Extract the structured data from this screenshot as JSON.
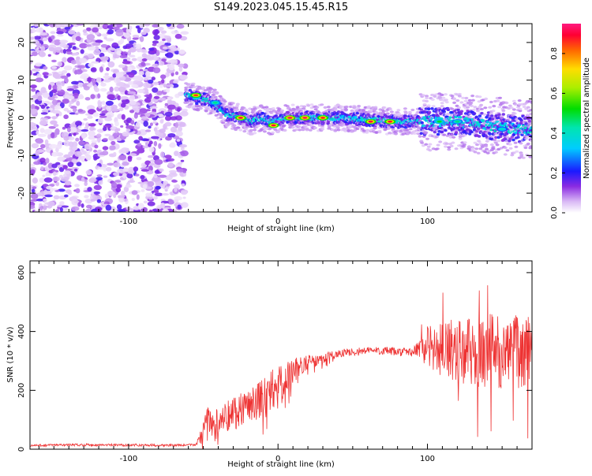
{
  "title": "S149.2023.045.15.45.R15",
  "chart_data": [
    {
      "type": "heatmap",
      "xlabel": "Height of straight line (km)",
      "ylabel": "Frequency (Hz)",
      "xlim": [
        -166,
        170
      ],
      "ylim": [
        -25,
        25
      ],
      "x_ticks": [
        -100,
        0,
        100
      ],
      "y_ticks": [
        -20,
        -10,
        0,
        10,
        20
      ],
      "colorbar": {
        "label": "Normalized spectral amplitude",
        "range": [
          0,
          0.95
        ],
        "ticks": [
          0.0,
          0.2,
          0.4,
          0.6,
          0.8
        ]
      },
      "noise_region_x": [
        -166,
        -62
      ],
      "ridge_path": [
        {
          "x": -62,
          "y": 6
        },
        {
          "x": -50,
          "y": 5
        },
        {
          "x": -42,
          "y": 4
        },
        {
          "x": -35,
          "y": 1
        },
        {
          "x": -25,
          "y": 0
        },
        {
          "x": -18,
          "y": -1
        },
        {
          "x": -12,
          "y": 0
        },
        {
          "x": -5,
          "y": -1
        },
        {
          "x": 5,
          "y": 0
        },
        {
          "x": 40,
          "y": 0
        },
        {
          "x": 80,
          "y": -1
        },
        {
          "x": 100,
          "y": -1
        },
        {
          "x": 120,
          "y": -1
        },
        {
          "x": 140,
          "y": -2
        },
        {
          "x": 160,
          "y": -3
        },
        {
          "x": 170,
          "y": -3
        }
      ],
      "hot_spots": [
        {
          "x": -55,
          "y": 6,
          "amp": 0.85
        },
        {
          "x": -42,
          "y": 4,
          "amp": 0.45
        },
        {
          "x": -25,
          "y": 0,
          "amp": 0.9
        },
        {
          "x": -3,
          "y": -2,
          "amp": 0.9
        },
        {
          "x": 8,
          "y": 0,
          "amp": 0.92
        },
        {
          "x": 18,
          "y": 0,
          "amp": 0.92
        },
        {
          "x": 30,
          "y": 0,
          "amp": 0.88
        },
        {
          "x": 62,
          "y": -1,
          "amp": 0.9
        },
        {
          "x": 75,
          "y": -1,
          "amp": 0.88
        },
        {
          "x": 108,
          "y": -1,
          "amp": 0.5
        },
        {
          "x": 120,
          "y": -1,
          "amp": 0.45
        },
        {
          "x": 150,
          "y": -3,
          "amp": 0.4
        }
      ]
    },
    {
      "type": "line",
      "xlabel": "Height of straight line (km)",
      "ylabel": "SNR (10 * v/v)",
      "xlim": [
        -166,
        170
      ],
      "ylim": [
        0,
        640
      ],
      "x_ticks": [
        -100,
        0,
        100
      ],
      "y_ticks": [
        0,
        200,
        400,
        600
      ],
      "color": "#ee3333",
      "series": [
        {
          "x": [
            -166,
            -150,
            -130,
            -110,
            -90,
            -70,
            -55,
            -50,
            -47,
            -44,
            -40,
            -35,
            -30,
            -25,
            -20,
            -15,
            -10,
            -5,
            0,
            5,
            10,
            15,
            20,
            25,
            30,
            40,
            50,
            60,
            70,
            80,
            90,
            95,
            100,
            105,
            110,
            120,
            130,
            140,
            150,
            160,
            170
          ],
          "values": [
            12,
            14,
            15,
            14,
            14,
            13,
            15,
            60,
            110,
            75,
            95,
            110,
            125,
            140,
            150,
            165,
            180,
            200,
            215,
            230,
            265,
            285,
            295,
            300,
            310,
            325,
            330,
            335,
            335,
            330,
            330,
            340,
            350,
            345,
            335,
            340,
            330,
            340,
            330,
            330,
            340
          ],
          "spread": [
            4,
            4,
            4,
            4,
            4,
            4,
            4,
            30,
            40,
            40,
            50,
            55,
            60,
            60,
            60,
            65,
            70,
            70,
            65,
            60,
            45,
            35,
            25,
            20,
            18,
            15,
            14,
            14,
            14,
            14,
            15,
            40,
            70,
            80,
            90,
            110,
            120,
            130,
            125,
            125,
            120
          ]
        }
      ]
    }
  ]
}
